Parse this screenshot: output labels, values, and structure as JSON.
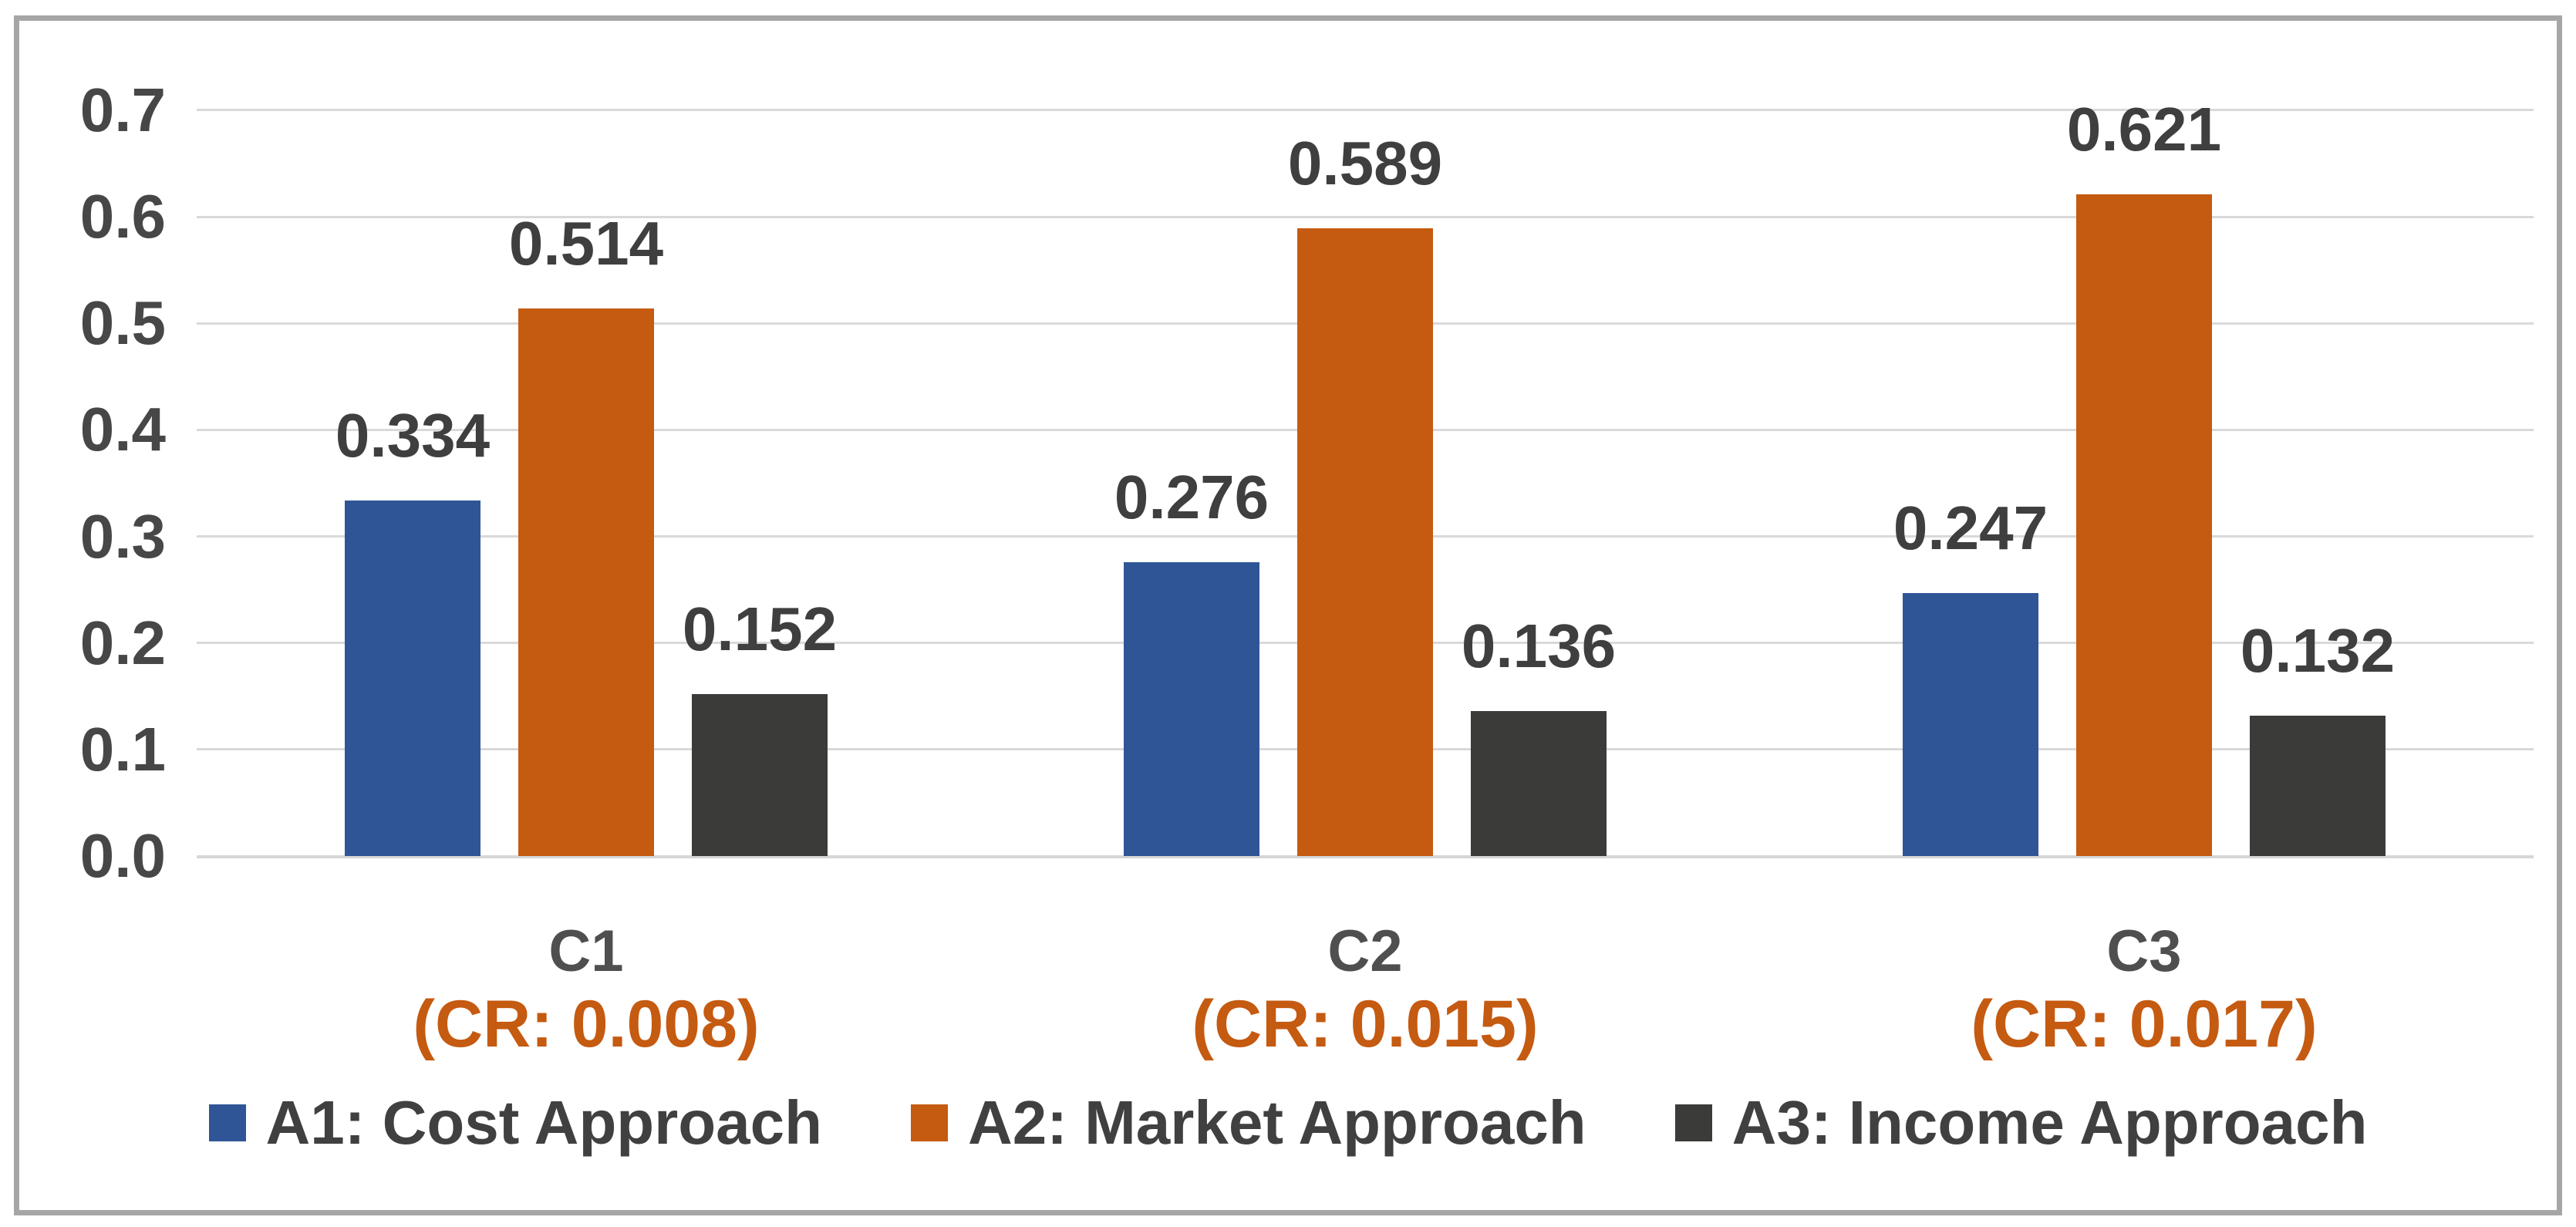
{
  "chart_data": {
    "type": "bar",
    "title": "",
    "categories": [
      "C1",
      "C2",
      "C3"
    ],
    "category_sublabels": [
      "(CR: 0.008)",
      "(CR: 0.015)",
      "(CR: 0.017)"
    ],
    "series": [
      {
        "name": "A1: Cost Approach",
        "color": "#2F5597",
        "values": [
          0.334,
          0.276,
          0.247
        ],
        "labels": [
          "0.334",
          "0.276",
          "0.247"
        ]
      },
      {
        "name": "A2: Market Approach",
        "color": "#C55A11",
        "values": [
          0.514,
          0.589,
          0.621
        ],
        "labels": [
          "0.514",
          "0.589",
          "0.621"
        ]
      },
      {
        "name": "A3: Income Approach",
        "color": "#3B3B39",
        "values": [
          0.152,
          0.136,
          0.132
        ],
        "labels": [
          "0.152",
          "0.136",
          "0.132"
        ]
      }
    ],
    "ylim": [
      0,
      0.7
    ],
    "ytick_step": 0.1,
    "ytick_labels": [
      "0.0",
      "0.1",
      "0.2",
      "0.3",
      "0.4",
      "0.5",
      "0.6",
      "0.7"
    ],
    "grid": true,
    "legend_position": "bottom"
  },
  "colors": {
    "gridline": "#D9D9D9",
    "tick_label": "#474747",
    "value_label": "#3F3F3F",
    "category_label": "#4F4F4F",
    "cr_label": "#C55A11",
    "frame_border": "#A6A6A6",
    "background": "#FFFFFF"
  }
}
